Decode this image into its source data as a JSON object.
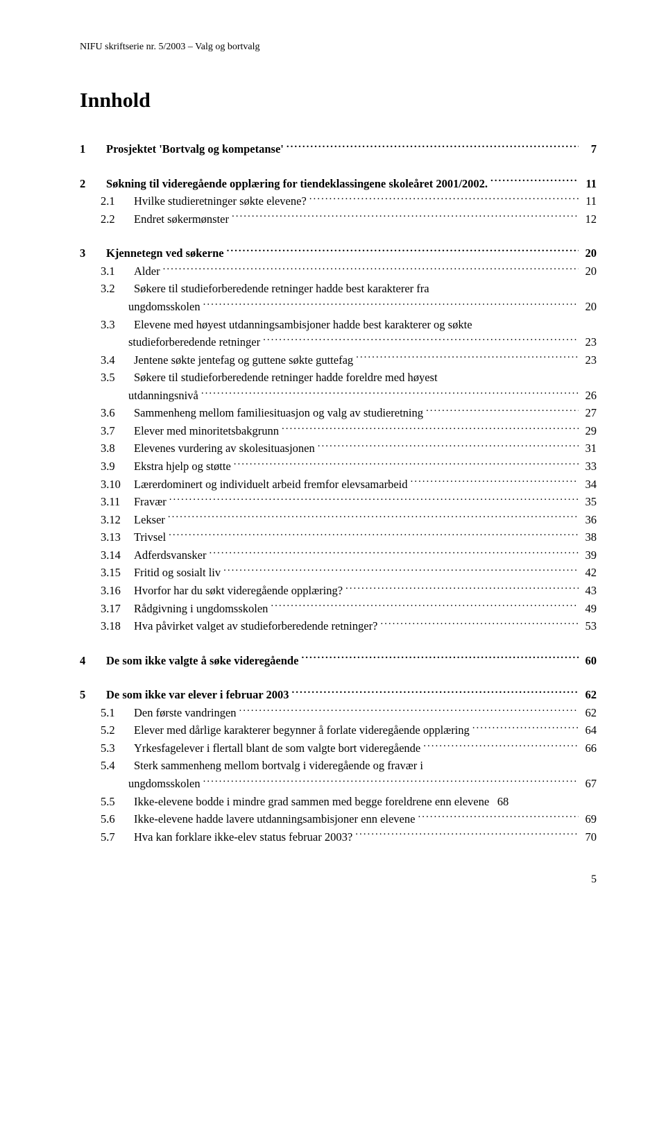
{
  "header": "NIFU skriftserie nr. 5/2003 – Valg og bortvalg",
  "title": "Innhold",
  "page_number": "5",
  "toc": [
    {
      "num": "1",
      "label": "Prosjektet 'Bortvalg og kompetanse'",
      "page": "7",
      "bold": true
    },
    {
      "num": "2",
      "label": "Søkning til videregående opplæring for tiendeklassingene skoleåret 2001/2002.",
      "page": "11",
      "bold": true,
      "children": [
        {
          "num": "2.1",
          "label": "Hvilke studieretninger søkte elevene?",
          "page": "11"
        },
        {
          "num": "2.2",
          "label": "Endret søkermønster",
          "page": "12"
        }
      ]
    },
    {
      "num": "3",
      "label": "Kjennetegn ved søkerne",
      "page": "20",
      "bold": true,
      "children": [
        {
          "num": "3.1",
          "label": "Alder",
          "page": "20"
        },
        {
          "num": "3.2",
          "label": "Søkere til studieforberedende retninger hadde best karakterer fra",
          "cont": "ungdomsskolen",
          "page": "20"
        },
        {
          "num": "3.3",
          "label": "Elevene med høyest utdanningsambisjoner hadde best karakterer og søkte",
          "cont": "studieforberedende retninger",
          "page": "23"
        },
        {
          "num": "3.4",
          "label": "Jentene søkte jentefag og guttene søkte guttefag",
          "page": "23"
        },
        {
          "num": "3.5",
          "label": "Søkere til studieforberedende retninger hadde foreldre med høyest",
          "cont": "utdanningsnivå",
          "page": "26"
        },
        {
          "num": "3.6",
          "label": "Sammenheng mellom familiesituasjon og valg av studieretning",
          "page": "27"
        },
        {
          "num": "3.7",
          "label": "Elever med minoritetsbakgrunn",
          "page": "29"
        },
        {
          "num": "3.8",
          "label": "Elevenes vurdering av skolesituasjonen",
          "page": "31"
        },
        {
          "num": "3.9",
          "label": "Ekstra hjelp og støtte",
          "page": "33"
        },
        {
          "num": "3.10",
          "label": "Lærerdominert og individuelt arbeid fremfor elevsamarbeid",
          "page": "34"
        },
        {
          "num": "3.11",
          "label": "Fravær",
          "page": "35"
        },
        {
          "num": "3.12",
          "label": "Lekser",
          "page": "36"
        },
        {
          "num": "3.13",
          "label": "Trivsel",
          "page": "38"
        },
        {
          "num": "3.14",
          "label": "Adferdsvansker",
          "page": "39"
        },
        {
          "num": "3.15",
          "label": "Fritid og sosialt liv",
          "page": "42"
        },
        {
          "num": "3.16",
          "label": "Hvorfor har du søkt videregående opplæring?",
          "page": "43"
        },
        {
          "num": "3.17",
          "label": "Rådgivning i ungdomsskolen",
          "page": "49"
        },
        {
          "num": "3.18",
          "label": "Hva påvirket valget av studieforberedende retninger?",
          "page": "53"
        }
      ]
    },
    {
      "num": "4",
      "label": "De som ikke valgte å søke videregående",
      "page": "60",
      "bold": true
    },
    {
      "num": "5",
      "label": "De som ikke var elever i februar 2003",
      "page": "62",
      "bold": true,
      "children": [
        {
          "num": "5.1",
          "label": "Den første vandringen",
          "page": "62"
        },
        {
          "num": "5.2",
          "label": "Elever med dårlige karakterer begynner å forlate videregående opplæring",
          "page": "64"
        },
        {
          "num": "5.3",
          "label": "Yrkesfagelever i flertall blant de som valgte bort videregående",
          "page": "66"
        },
        {
          "num": "5.4",
          "label": "Sterk sammenheng mellom bortvalg i videregående og fravær i",
          "cont": "ungdomsskolen",
          "page": "67"
        },
        {
          "num": "5.5",
          "label": "Ikke-elevene bodde i mindre grad sammen med begge foreldrene enn elevene",
          "page": "68",
          "noleader": true
        },
        {
          "num": "5.6",
          "label": "Ikke-elevene hadde lavere utdanningsambisjoner enn elevene",
          "page": "69"
        },
        {
          "num": "5.7",
          "label": "Hva kan forklare ikke-elev status februar 2003?",
          "page": "70"
        }
      ]
    }
  ]
}
